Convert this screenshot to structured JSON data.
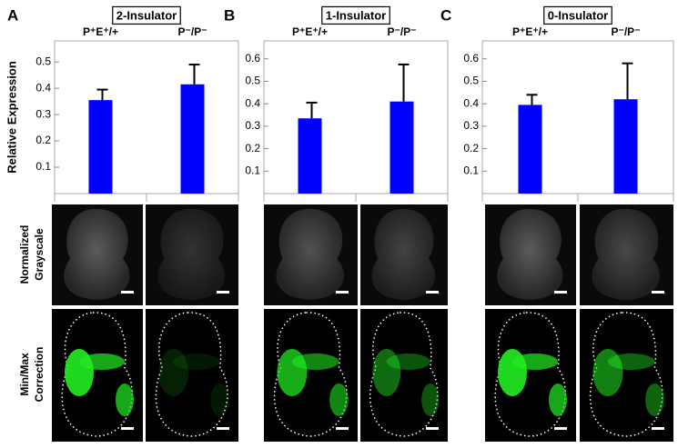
{
  "chart_data": [
    {
      "type": "bar",
      "label": "A",
      "title": "2-Insulator",
      "ylabel": "Relative Expression",
      "categories": [
        "P⁺E⁺/+",
        "P⁻/P⁻"
      ],
      "values": [
        0.355,
        0.415
      ],
      "errors": [
        0.04,
        0.075
      ],
      "color": "#0000ff",
      "ylim": [
        0,
        0.58
      ],
      "yticks": [
        0.1,
        0.2,
        0.3,
        0.4,
        0.5
      ]
    },
    {
      "type": "bar",
      "label": "B",
      "title": "1-Insulator",
      "categories": [
        "P⁺E⁺/+",
        "P⁻/P⁻"
      ],
      "values": [
        0.335,
        0.41
      ],
      "errors": [
        0.07,
        0.165
      ],
      "color": "#0000ff",
      "ylim": [
        0,
        0.68
      ],
      "yticks": [
        0.1,
        0.2,
        0.3,
        0.4,
        0.5,
        0.6
      ]
    },
    {
      "type": "bar",
      "label": "C",
      "title": "0-Insulator",
      "categories": [
        "P⁺E⁺/+",
        "P⁻/P⁻"
      ],
      "values": [
        0.395,
        0.42
      ],
      "errors": [
        0.045,
        0.16
      ],
      "color": "#0000ff",
      "ylim": [
        0,
        0.68
      ],
      "yticks": [
        0.1,
        0.2,
        0.3,
        0.4,
        0.5,
        0.6
      ]
    }
  ],
  "row_labels": [
    [
      "Normalized",
      "Grayscale"
    ],
    [
      "Min/Max",
      "Correction"
    ]
  ]
}
